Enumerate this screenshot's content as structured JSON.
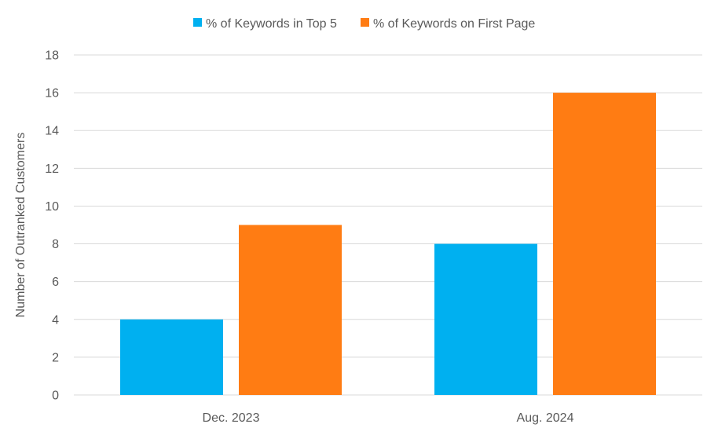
{
  "chart_data": {
    "type": "bar",
    "title": "",
    "categories": [
      "Dec. 2023",
      "Aug. 2024"
    ],
    "series": [
      {
        "name": "% of Keywords in Top 5",
        "color": "#00B0F0",
        "values": [
          4,
          8
        ]
      },
      {
        "name": "% of Keywords on First Page",
        "color": "#FF7C13",
        "values": [
          9,
          16
        ]
      }
    ],
    "xlabel": "",
    "ylabel": "Number of Outranked Customers",
    "ylim": [
      0,
      18
    ],
    "yticks": [
      0,
      2,
      4,
      6,
      8,
      10,
      12,
      14,
      16,
      18
    ],
    "grid": true,
    "legend_position": "top-center"
  }
}
